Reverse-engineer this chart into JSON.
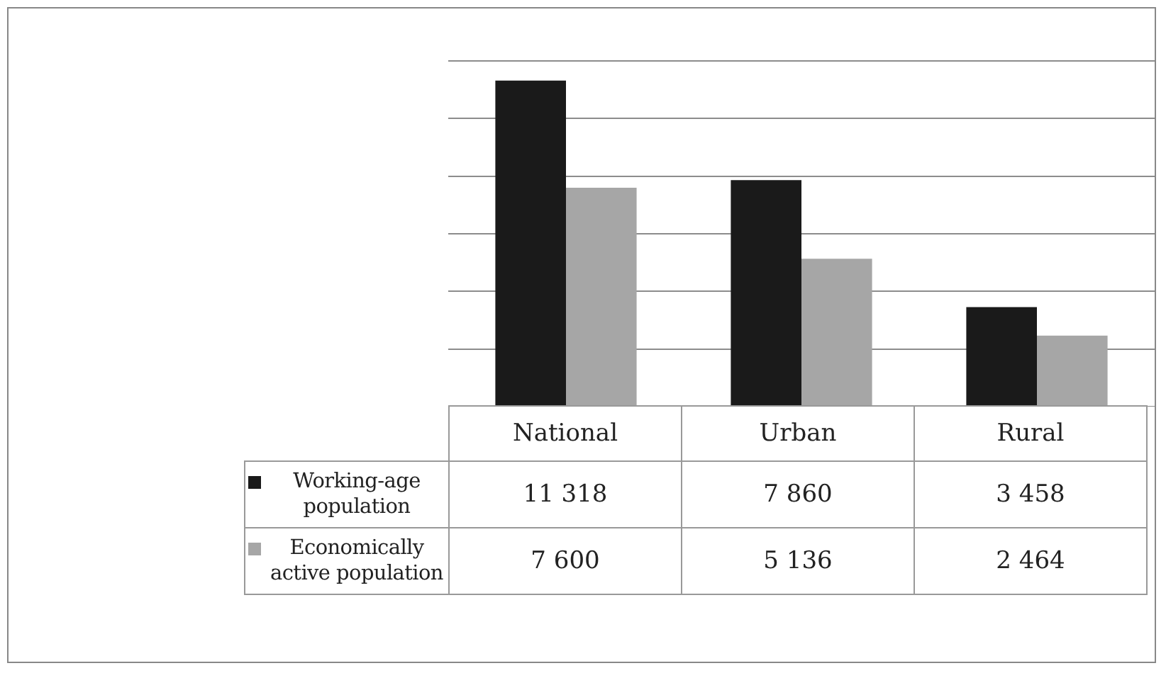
{
  "chart_data": {
    "type": "bar",
    "categories": [
      "National",
      "Urban",
      "Rural"
    ],
    "series": [
      {
        "name": "Working-age population",
        "color": "#1a1a1a",
        "values": [
          11318,
          7860,
          3458
        ],
        "value_labels": [
          "11 318",
          "7 860",
          "3 458"
        ]
      },
      {
        "name": "Economically active population",
        "color": "#a6a6a6",
        "values": [
          7600,
          5136,
          2464
        ],
        "value_labels": [
          "7 600",
          "5 136",
          "2 464"
        ]
      }
    ],
    "ylim": [
      0,
      12000
    ],
    "yticks": [
      {
        "value": 0,
        "label": null
      },
      {
        "value": 2000,
        "label": null
      },
      {
        "value": 4000,
        "label": null
      },
      {
        "value": 6000,
        "label": null
      },
      {
        "value": 8000,
        "label": null
      },
      {
        "value": 10000,
        "label": null
      },
      {
        "value": 12000,
        "label": null
      }
    ],
    "grid": "y",
    "tick_labels": false,
    "legend": "bottom left"
  }
}
